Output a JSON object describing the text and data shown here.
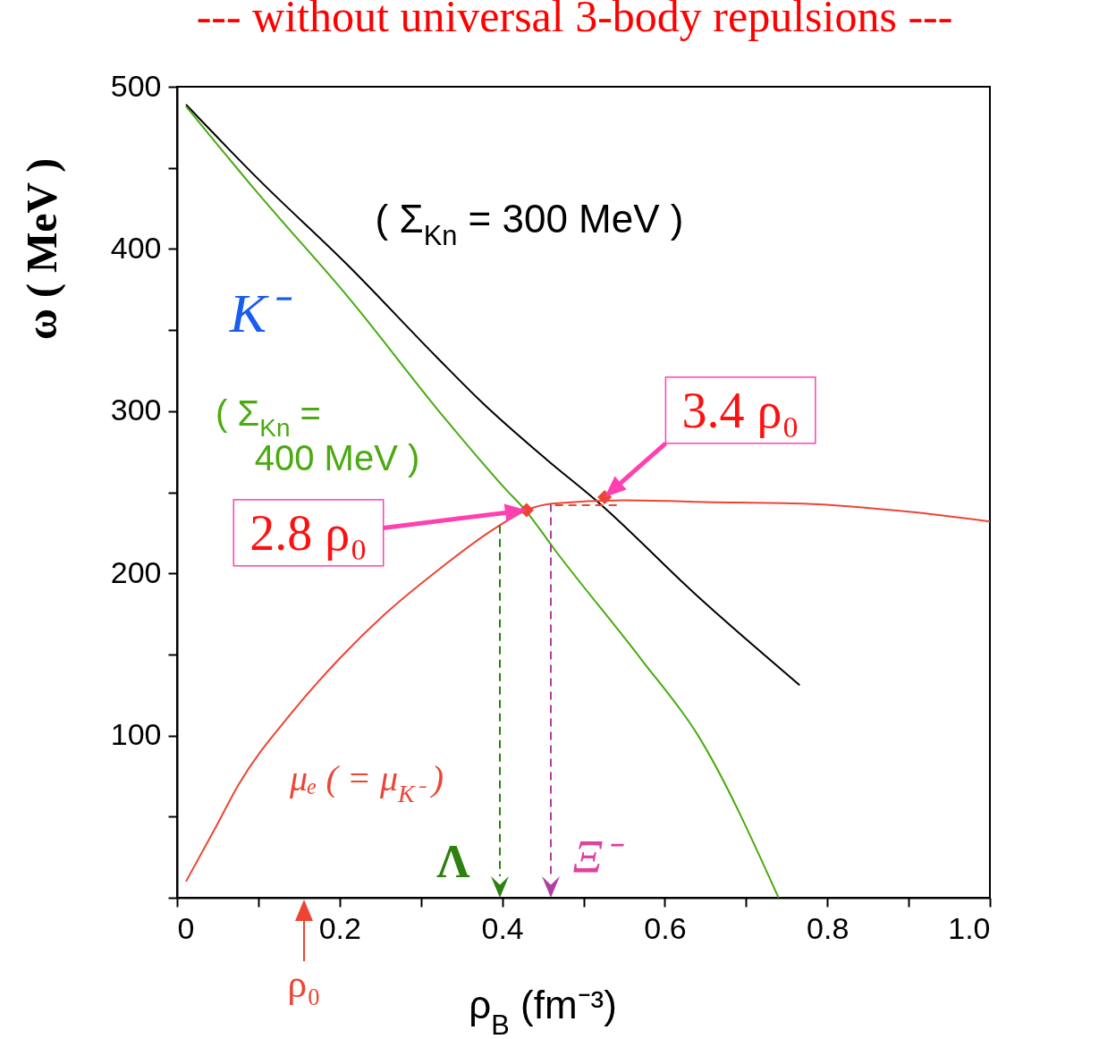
{
  "chart_data": {
    "type": "line",
    "title": "--- without universal 3-body repulsions ---",
    "xlabel": "ρ$_{B}$ (fm⁻³)",
    "ylabel": "ω ( MeV )",
    "xlim": [
      0,
      1
    ],
    "ylim": [
      0,
      500
    ],
    "xticks": [
      {
        "value": 0,
        "label": "0"
      },
      {
        "value": 0.1,
        "label": null
      },
      {
        "value": 0.2,
        "label": "0.2"
      },
      {
        "value": 0.3,
        "label": null
      },
      {
        "value": 0.4,
        "label": "0.4"
      },
      {
        "value": 0.5,
        "label": null
      },
      {
        "value": 0.6,
        "label": "0.6"
      },
      {
        "value": 0.7,
        "label": null
      },
      {
        "value": 0.8,
        "label": "0.8"
      },
      {
        "value": 0.9,
        "label": null
      },
      {
        "value": 1,
        "label": "1.0"
      }
    ],
    "yticks": [
      {
        "value": 0,
        "label": null
      },
      {
        "value": 50,
        "label": null
      },
      100,
      {
        "value": 150,
        "label": null
      },
      200,
      {
        "value": 250,
        "label": null
      },
      300,
      {
        "value": 350,
        "label": null
      },
      400,
      {
        "value": 450,
        "label": null
      },
      500
    ],
    "grid": false,
    "series": [
      {
        "type": "line",
        "color": "#000000",
        "x": [
          0.011,
          0.1,
          0.21,
          0.32,
          0.376,
          0.455,
          0.52,
          0.64,
          0.766
        ],
        "values": [
          489,
          443,
          390,
          333,
          305,
          270,
          243,
          186,
          131
        ]
      },
      {
        "type": "line",
        "color": "#4aaa10",
        "x": [
          0.011,
          0.1,
          0.211,
          0.332,
          0.404,
          0.43,
          0.464,
          0.571,
          0.641,
          0.74
        ],
        "values": [
          488,
          434,
          370,
          294,
          252,
          238,
          215,
          147,
          100,
          0
        ]
      },
      {
        "type": "line",
        "color": "#ee4433",
        "x": [
          0.011,
          0.046,
          0.076,
          0.141,
          0.201,
          0.256,
          0.316,
          0.392,
          0.43,
          0.461,
          0.55,
          0.65,
          0.77,
          0.9,
          1.0
        ],
        "values": [
          10,
          42,
          70,
          114,
          148,
          175,
          200,
          228,
          239,
          243,
          245,
          244,
          243,
          238,
          232
        ]
      },
      {
        "type": "line",
        "color": "#ee4433",
        "line_style": "dashed",
        "x": [
          0.465,
          0.545
        ],
        "values": [
          242,
          242
        ]
      },
      {
        "type": "scatter",
        "color": "#ee4433",
        "marker": "diamond",
        "x": [
          0.43,
          0.526
        ],
        "values": [
          239,
          247
        ]
      }
    ],
    "annotations": [
      "( Σ$_{Kn}$ = 300 MeV )",
      "K⁻",
      "( Σ$_{Kn}$ =",
      "400 MeV )",
      {
        "text": "3.4 ρ₀",
        "x": 0.526,
        "y": 247
      },
      "2.8 ρ₀",
      "μₑ ( = μ$_{K⁻}$ )",
      "Λ",
      "Ξ⁻",
      "ρ₀"
    ]
  }
}
